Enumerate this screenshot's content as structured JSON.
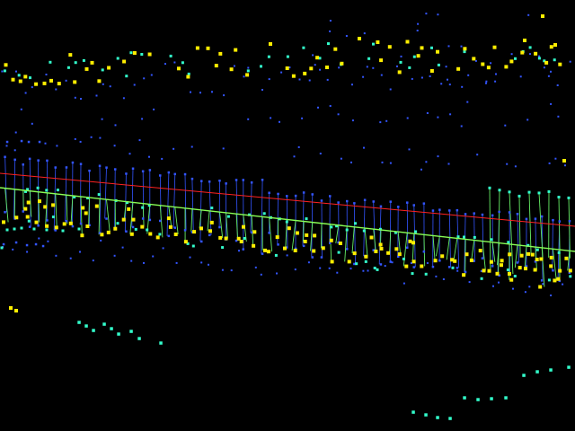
{
  "scene": {
    "background": "#000000",
    "colors": {
      "blue_points": "#3355ff",
      "cyan_points": "#33ffcc",
      "yellow_points": "#ffee00",
      "red_line": "#ff2222",
      "green_line": "#88ff55",
      "blue_links": "#3355ff",
      "green_links": "#66ee66"
    },
    "legend": []
  }
}
